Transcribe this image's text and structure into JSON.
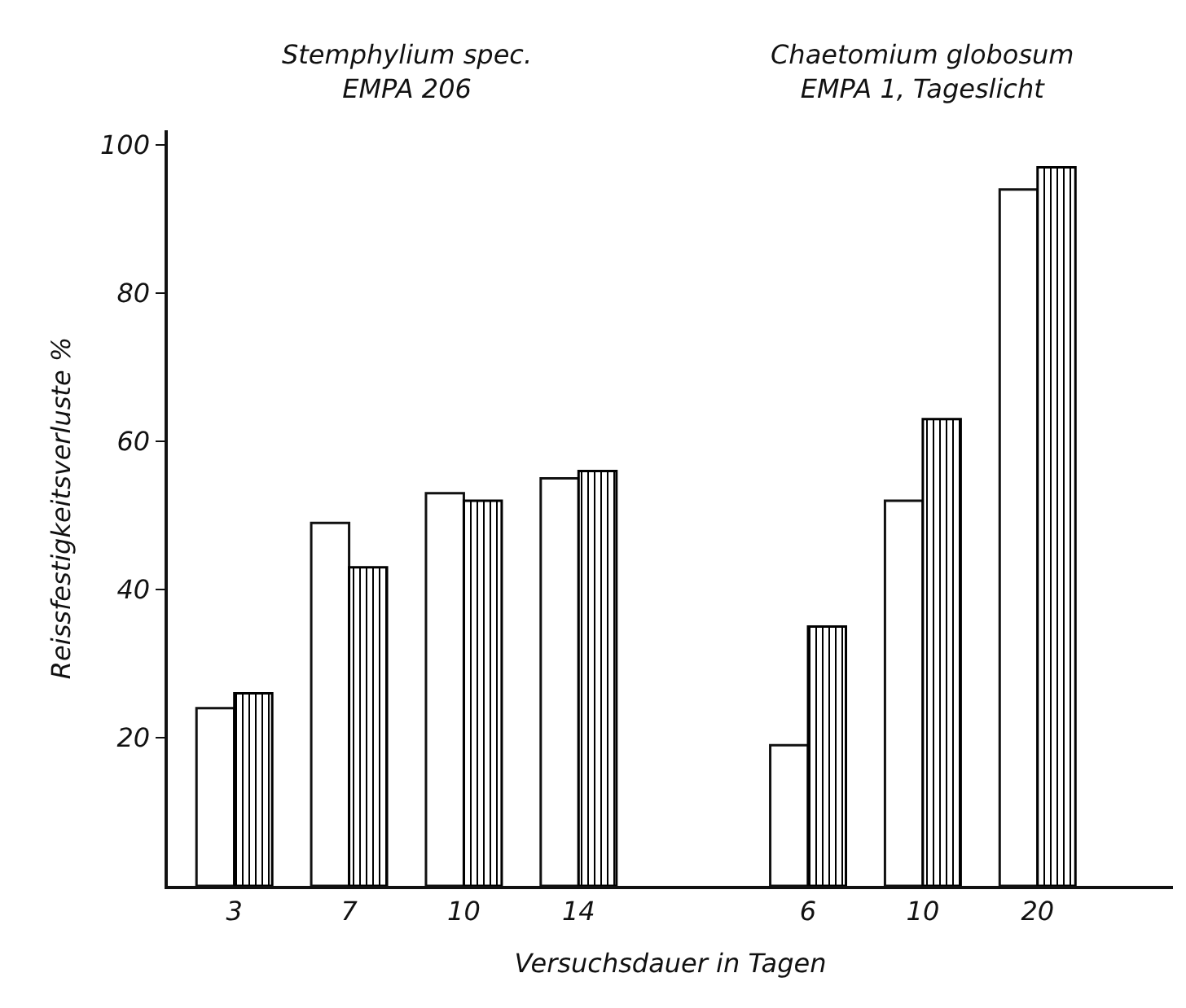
{
  "chart_data": {
    "type": "bar",
    "xlabel": "Versuchsdauer in Tagen",
    "ylabel": "Reissfestigkeitsverluste %",
    "categories": [
      "3",
      "7",
      "10",
      "14",
      null,
      "6",
      "10",
      "20"
    ],
    "series": [
      {
        "color": "#ffffff",
        "values": [
          24,
          49,
          53,
          55,
          null,
          19,
          52,
          94
        ]
      },
      {
        "color": "#000000",
        "values": [
          26,
          43,
          52,
          56,
          null,
          35,
          63,
          97
        ]
      }
    ],
    "ylim": [
      0,
      102
    ],
    "yticks": [
      20,
      40,
      60,
      80,
      100
    ],
    "grid": false,
    "annotations": [
      "Stemphylium spec.\nEMPA 206",
      "Chaetomium globosum\nEMPA 1, Tageslicht"
    ]
  }
}
